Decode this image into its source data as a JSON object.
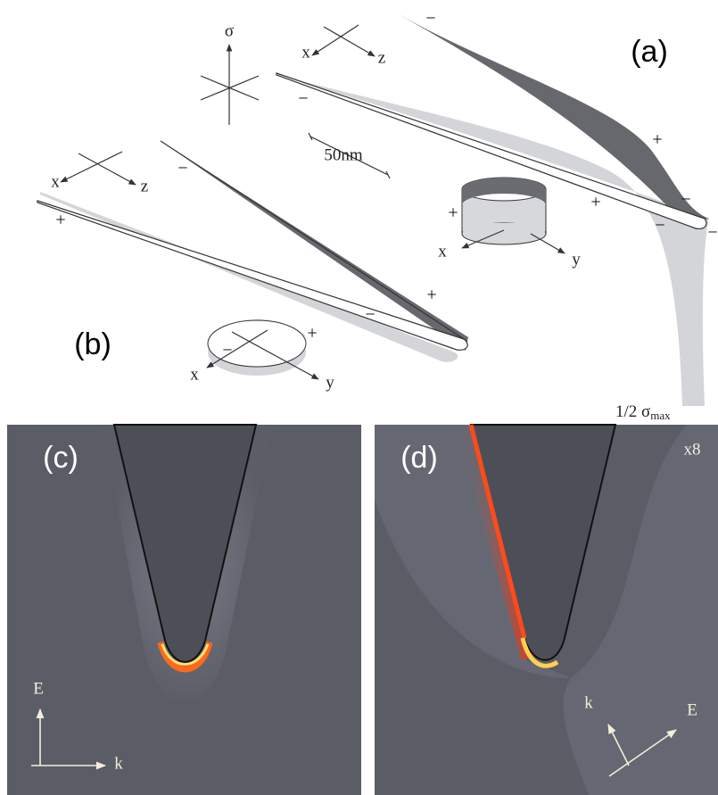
{
  "panel_a": {
    "label": "(a)",
    "sigma_axis": "σ",
    "top_axes": {
      "x": "x",
      "z": "z"
    },
    "scale_bar": "50nm",
    "cylinder_axes": {
      "x": "x",
      "y": "y"
    },
    "signs": [
      "−",
      "−",
      "+",
      "+",
      "−",
      "−",
      "−",
      "+"
    ],
    "sigma_max": {
      "fraction": "1/2",
      "symbol": "σ",
      "subscript": "max"
    }
  },
  "panel_b": {
    "label": "(b)",
    "axes": {
      "x": "x",
      "z": "z"
    },
    "ellipse_axes": {
      "x": "x",
      "y": "y"
    },
    "signs": [
      "−",
      "+",
      "+",
      "−",
      "+",
      "−"
    ]
  },
  "panel_c": {
    "label": "(c)",
    "axes": {
      "E": "E",
      "k": "k"
    }
  },
  "panel_d": {
    "label": "(d)",
    "factor": "x8",
    "axes": {
      "k": "k",
      "E": "E"
    }
  }
}
